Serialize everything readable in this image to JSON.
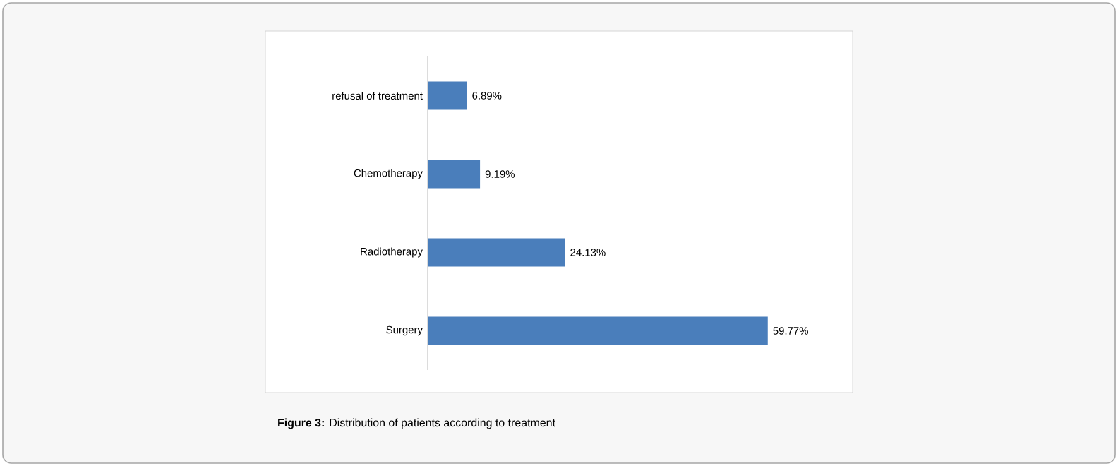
{
  "chart_data": {
    "type": "bar",
    "orientation": "horizontal",
    "title": "**Figure 3:** Distribution of patients according to treatment",
    "categories": [
      "refusal of treatment",
      "Chemotherapy",
      "Radiotherapy",
      "Surgery"
    ],
    "values": [
      6.89,
      9.19,
      24.13,
      59.77
    ],
    "value_labels": [
      "6.89%",
      "9.19%",
      "24.13%",
      "59.77%"
    ],
    "color": "#4a7ebb"
  }
}
